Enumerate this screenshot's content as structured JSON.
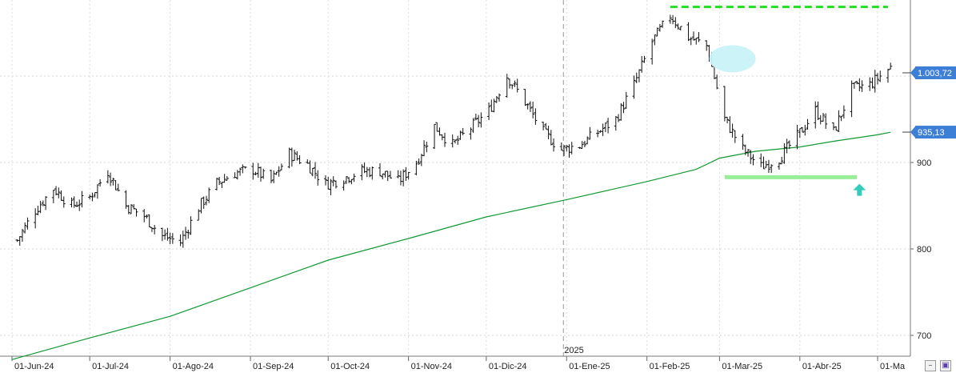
{
  "chart_data": {
    "type": "bar",
    "subtype": "ohlc-price-bars",
    "title": "",
    "xlabel": "",
    "ylabel": "",
    "ylim": [
      675,
      1090
    ],
    "y_ticks": [
      700,
      800,
      900
    ],
    "y_tick_labels": [
      "700",
      "800",
      "900"
    ],
    "grid": true,
    "x_tick_labels": [
      "01-Jun-24",
      "01-Jul-24",
      "01-Ago-24",
      "01-Sep-24",
      "01-Oct-24",
      "01-Nov-24",
      "01-Dic-24",
      "01-Ene-25",
      "01-Feb-25",
      "01-Mar-25",
      "01-Abr-25",
      "01-Ma"
    ],
    "x_tick_dates": [
      "2024-06-01",
      "2024-07-01",
      "2024-08-01",
      "2024-09-01",
      "2024-10-01",
      "2024-11-01",
      "2024-12-01",
      "2025-01-01",
      "2025-02-01",
      "2025-03-01",
      "2025-04-01",
      "2025-05-01"
    ],
    "year_marker": {
      "label": "2025",
      "date": "2025-01-01"
    },
    "last_price": {
      "label": "1.003,72",
      "value": 1003.72
    },
    "moving_average_label": {
      "label": "935,13",
      "value": 935.13
    },
    "moving_average": {
      "color": "#119933",
      "dates": [
        "2024-06-01",
        "2024-07-01",
        "2024-08-01",
        "2024-09-01",
        "2024-10-01",
        "2024-11-01",
        "2024-12-01",
        "2025-01-01",
        "2025-02-01",
        "2025-02-20",
        "2025-03-01",
        "2025-03-15",
        "2025-04-01",
        "2025-04-15",
        "2025-05-01",
        "2025-05-06"
      ],
      "values": [
        672,
        697,
        722,
        755,
        787,
        812,
        837,
        857,
        878,
        892,
        905,
        913,
        918,
        925,
        932,
        935
      ]
    },
    "price_series": {
      "color": "#111111",
      "anchor_dates": [
        "2024-06-03",
        "2024-06-10",
        "2024-06-17",
        "2024-06-24",
        "2024-07-01",
        "2024-07-08",
        "2024-07-15",
        "2024-07-22",
        "2024-07-29",
        "2024-08-05",
        "2024-08-12",
        "2024-08-19",
        "2024-08-26",
        "2024-09-02",
        "2024-09-09",
        "2024-09-16",
        "2024-09-23",
        "2024-09-30",
        "2024-10-07",
        "2024-10-14",
        "2024-10-21",
        "2024-10-28",
        "2024-11-04",
        "2024-11-11",
        "2024-11-18",
        "2024-11-25",
        "2024-12-02",
        "2024-12-09",
        "2024-12-16",
        "2024-12-23",
        "2024-12-30",
        "2025-01-06",
        "2025-01-13",
        "2025-01-20",
        "2025-01-27",
        "2025-02-03",
        "2025-02-10",
        "2025-02-17",
        "2025-02-24",
        "2025-03-03",
        "2025-03-10",
        "2025-03-17",
        "2025-03-24",
        "2025-03-31",
        "2025-04-07",
        "2025-04-14",
        "2025-04-21",
        "2025-04-28",
        "2025-05-06"
      ],
      "anchor_values": [
        810,
        845,
        870,
        850,
        860,
        890,
        850,
        838,
        815,
        808,
        848,
        876,
        888,
        892,
        878,
        910,
        898,
        875,
        882,
        890,
        890,
        878,
        900,
        942,
        920,
        940,
        960,
        1000,
        970,
        935,
        915,
        920,
        935,
        950,
        990,
        1040,
        1070,
        1045,
        1035,
        950,
        915,
        895,
        905,
        930,
        960,
        935,
        985,
        990,
        1010
      ]
    },
    "annotations": [
      {
        "type": "resistance-line",
        "value": 1080,
        "from": "2025-02-10",
        "to": "2025-05-05",
        "color": "#22dd22"
      },
      {
        "type": "support-line",
        "value": 883,
        "from": "2025-03-03",
        "to": "2025-04-23",
        "color": "#99ee99"
      },
      {
        "type": "ellipse",
        "center_date": "2025-03-06",
        "value": 1020,
        "color": "#c8f2f8"
      },
      {
        "type": "up-arrow",
        "date": "2025-04-24",
        "value": 868,
        "color": "#33ccbb"
      }
    ]
  },
  "ui": {
    "minimize_icon": "minimize-window-icon",
    "save_icon": "save-icon"
  }
}
